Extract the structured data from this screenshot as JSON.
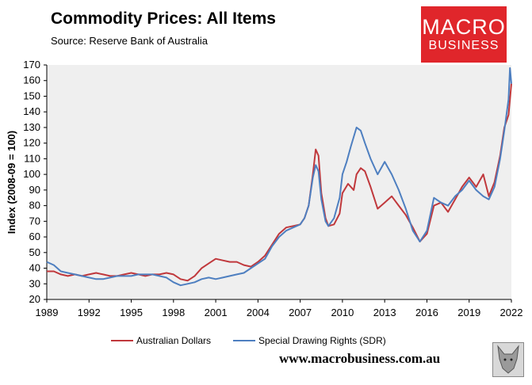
{
  "header": {
    "title": "Commodity Prices: All Items",
    "subtitle": "Source: Reserve Bank of Australia"
  },
  "logo": {
    "line1": "MACRO",
    "line2": "BUSINESS",
    "color": "#e0262b"
  },
  "footer": {
    "url": "www.macrobusiness.com.au",
    "mascot_icon": "wolf-icon"
  },
  "colors": {
    "aud": "#c0383c",
    "sdr": "#4e7fc0",
    "plot_bg": "#efefef"
  },
  "chart_data": {
    "type": "line",
    "title": "Commodity Prices: All Items",
    "ylabel": "Index (2008-09 = 100)",
    "xlabel": "",
    "ylim": [
      20,
      170
    ],
    "xlim": [
      1989.0,
      2022.0
    ],
    "yticks": [
      20,
      30,
      40,
      50,
      60,
      70,
      80,
      90,
      100,
      110,
      120,
      130,
      140,
      150,
      160,
      170
    ],
    "xticks": [
      "1989",
      "1992",
      "1995",
      "1998",
      "2001",
      "2004",
      "2007",
      "2010",
      "2013",
      "2016",
      "2019",
      "2022"
    ],
    "grid": false,
    "legend": "bottom",
    "series": [
      {
        "name": "Australian Dollars",
        "color": "#c0383c",
        "points": [
          [
            1989.0,
            38
          ],
          [
            1989.5,
            38
          ],
          [
            1990.0,
            36
          ],
          [
            1990.5,
            35
          ],
          [
            1991.0,
            36
          ],
          [
            1991.5,
            35
          ],
          [
            1992.0,
            36
          ],
          [
            1992.5,
            37
          ],
          [
            1993.0,
            36
          ],
          [
            1993.5,
            35
          ],
          [
            1994.0,
            35
          ],
          [
            1994.5,
            36
          ],
          [
            1995.0,
            37
          ],
          [
            1995.5,
            36
          ],
          [
            1996.0,
            35
          ],
          [
            1996.5,
            36
          ],
          [
            1997.0,
            36
          ],
          [
            1997.5,
            37
          ],
          [
            1998.0,
            36
          ],
          [
            1998.5,
            33
          ],
          [
            1999.0,
            32
          ],
          [
            1999.5,
            35
          ],
          [
            2000.0,
            40
          ],
          [
            2000.5,
            43
          ],
          [
            2001.0,
            46
          ],
          [
            2001.5,
            45
          ],
          [
            2002.0,
            44
          ],
          [
            2002.5,
            44
          ],
          [
            2003.0,
            42
          ],
          [
            2003.5,
            41
          ],
          [
            2004.0,
            44
          ],
          [
            2004.5,
            48
          ],
          [
            2005.0,
            55
          ],
          [
            2005.5,
            62
          ],
          [
            2006.0,
            66
          ],
          [
            2006.5,
            67
          ],
          [
            2007.0,
            68
          ],
          [
            2007.3,
            72
          ],
          [
            2007.6,
            80
          ],
          [
            2007.9,
            100
          ],
          [
            2008.1,
            116
          ],
          [
            2008.3,
            112
          ],
          [
            2008.5,
            88
          ],
          [
            2008.8,
            72
          ],
          [
            2009.0,
            67
          ],
          [
            2009.4,
            68
          ],
          [
            2009.8,
            75
          ],
          [
            2010.0,
            88
          ],
          [
            2010.4,
            94
          ],
          [
            2010.8,
            90
          ],
          [
            2011.0,
            100
          ],
          [
            2011.3,
            104
          ],
          [
            2011.6,
            102
          ],
          [
            2012.0,
            92
          ],
          [
            2012.5,
            78
          ],
          [
            2013.0,
            82
          ],
          [
            2013.5,
            86
          ],
          [
            2014.0,
            80
          ],
          [
            2014.5,
            74
          ],
          [
            2015.0,
            66
          ],
          [
            2015.5,
            57
          ],
          [
            2016.0,
            62
          ],
          [
            2016.5,
            80
          ],
          [
            2017.0,
            82
          ],
          [
            2017.5,
            76
          ],
          [
            2018.0,
            84
          ],
          [
            2018.5,
            92
          ],
          [
            2019.0,
            98
          ],
          [
            2019.5,
            92
          ],
          [
            2020.0,
            100
          ],
          [
            2020.4,
            86
          ],
          [
            2020.8,
            95
          ],
          [
            2021.2,
            112
          ],
          [
            2021.5,
            130
          ],
          [
            2021.8,
            138
          ],
          [
            2022.0,
            158
          ]
        ]
      },
      {
        "name": "Special Drawing Rights (SDR)",
        "color": "#4e7fc0",
        "points": [
          [
            1989.0,
            44
          ],
          [
            1989.5,
            42
          ],
          [
            1990.0,
            38
          ],
          [
            1990.5,
            37
          ],
          [
            1991.0,
            36
          ],
          [
            1991.5,
            35
          ],
          [
            1992.0,
            34
          ],
          [
            1992.5,
            33
          ],
          [
            1993.0,
            33
          ],
          [
            1993.5,
            34
          ],
          [
            1994.0,
            35
          ],
          [
            1994.5,
            35
          ],
          [
            1995.0,
            35
          ],
          [
            1995.5,
            36
          ],
          [
            1996.0,
            36
          ],
          [
            1996.5,
            36
          ],
          [
            1997.0,
            35
          ],
          [
            1997.5,
            34
          ],
          [
            1998.0,
            31
          ],
          [
            1998.5,
            29
          ],
          [
            1999.0,
            30
          ],
          [
            1999.5,
            31
          ],
          [
            2000.0,
            33
          ],
          [
            2000.5,
            34
          ],
          [
            2001.0,
            33
          ],
          [
            2001.5,
            34
          ],
          [
            2002.0,
            35
          ],
          [
            2002.5,
            36
          ],
          [
            2003.0,
            37
          ],
          [
            2003.5,
            40
          ],
          [
            2004.0,
            43
          ],
          [
            2004.5,
            46
          ],
          [
            2005.0,
            54
          ],
          [
            2005.5,
            60
          ],
          [
            2006.0,
            64
          ],
          [
            2006.5,
            66
          ],
          [
            2007.0,
            68
          ],
          [
            2007.3,
            72
          ],
          [
            2007.6,
            80
          ],
          [
            2007.9,
            98
          ],
          [
            2008.1,
            106
          ],
          [
            2008.3,
            102
          ],
          [
            2008.5,
            84
          ],
          [
            2008.8,
            70
          ],
          [
            2009.0,
            67
          ],
          [
            2009.4,
            72
          ],
          [
            2009.8,
            85
          ],
          [
            2010.0,
            100
          ],
          [
            2010.3,
            108
          ],
          [
            2010.6,
            118
          ],
          [
            2011.0,
            130
          ],
          [
            2011.3,
            128
          ],
          [
            2011.6,
            120
          ],
          [
            2012.0,
            110
          ],
          [
            2012.5,
            100
          ],
          [
            2013.0,
            108
          ],
          [
            2013.5,
            100
          ],
          [
            2014.0,
            90
          ],
          [
            2014.5,
            78
          ],
          [
            2015.0,
            64
          ],
          [
            2015.5,
            57
          ],
          [
            2016.0,
            64
          ],
          [
            2016.5,
            85
          ],
          [
            2017.0,
            82
          ],
          [
            2017.5,
            80
          ],
          [
            2018.0,
            86
          ],
          [
            2018.5,
            90
          ],
          [
            2019.0,
            96
          ],
          [
            2019.5,
            90
          ],
          [
            2020.0,
            86
          ],
          [
            2020.4,
            84
          ],
          [
            2020.8,
            92
          ],
          [
            2021.2,
            110
          ],
          [
            2021.5,
            128
          ],
          [
            2021.8,
            148
          ],
          [
            2021.9,
            168
          ],
          [
            2022.0,
            158
          ]
        ]
      }
    ]
  }
}
